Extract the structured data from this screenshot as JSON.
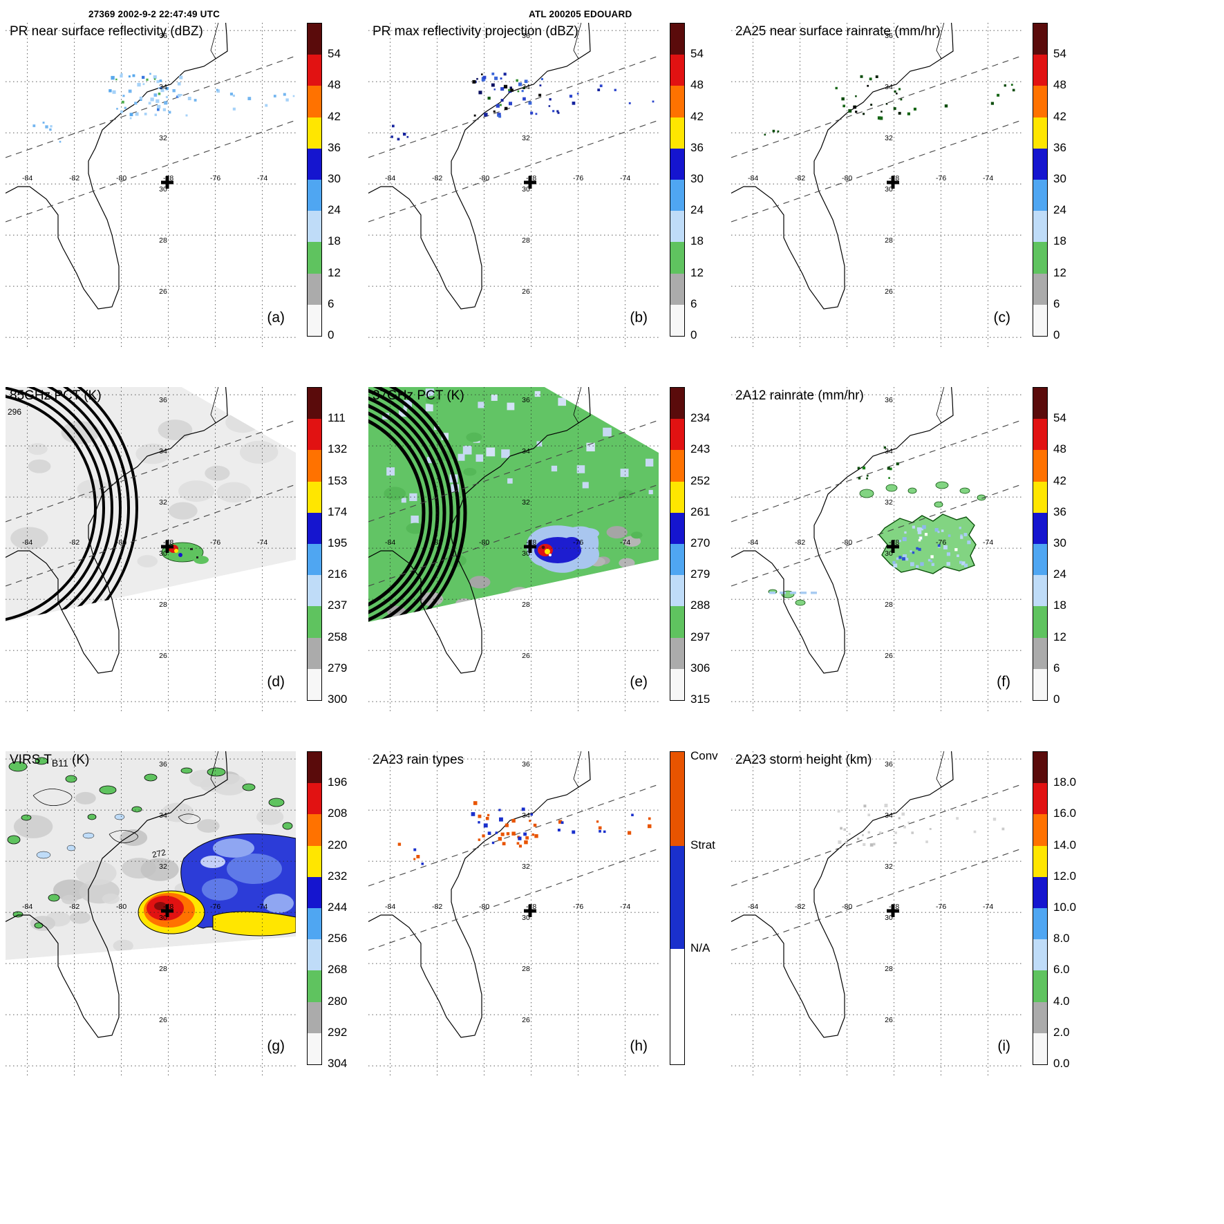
{
  "header": {
    "orbit_info": "27369 2002-9-2 22:47:49 UTC",
    "storm_id": "ATL 200205 EDOUARD"
  },
  "map_labels": {
    "lon": [
      "-84",
      "-82",
      "-80",
      "-78",
      "-76",
      "-74"
    ],
    "lat": [
      "36",
      "34",
      "32",
      "30",
      "28",
      "26"
    ],
    "storm_center_marker": "+"
  },
  "palette": [
    "#5a0b0b",
    "#e11212",
    "#ff7200",
    "#ffe600",
    "#1515cf",
    "#4fa6f2",
    "#bfdcf8",
    "#5fc35f",
    "#ababab",
    "#f7f7f7"
  ],
  "panels": [
    {
      "letter": "(a)",
      "title": "PR near surface reflectivity (dBZ)",
      "cbar_ticks": [
        "54",
        "48",
        "42",
        "36",
        "30",
        "24",
        "18",
        "12",
        "6",
        "0"
      ]
    },
    {
      "letter": "(b)",
      "title": "PR max reflectivity projection (dBZ)",
      "cbar_ticks": [
        "54",
        "48",
        "42",
        "36",
        "30",
        "24",
        "18",
        "12",
        "6",
        "0"
      ]
    },
    {
      "letter": "(c)",
      "title": "2A25 near surface rainrate (mm/hr)",
      "cbar_ticks": [
        "54",
        "48",
        "42",
        "36",
        "30",
        "24",
        "18",
        "12",
        "6",
        "0"
      ]
    },
    {
      "letter": "(d)",
      "title": "85GHz PCT (K)",
      "contour_label": "296",
      "cbar_ticks": [
        "111",
        "132",
        "153",
        "174",
        "195",
        "216",
        "237",
        "258",
        "279",
        "300"
      ]
    },
    {
      "letter": "(e)",
      "title": "37GHz PCT (K)",
      "cbar_ticks": [
        "234",
        "243",
        "252",
        "261",
        "270",
        "279",
        "288",
        "297",
        "306",
        "315"
      ]
    },
    {
      "letter": "(f)",
      "title": "2A12 rainrate (mm/hr)",
      "cbar_ticks": [
        "54",
        "48",
        "42",
        "36",
        "30",
        "24",
        "18",
        "12",
        "6",
        "0"
      ]
    },
    {
      "letter": "(g)",
      "title": "VIRS TB11 (K)",
      "title_parts": {
        "pre": "VIRS T",
        "sub": "B11",
        "post": " (K)"
      },
      "contour_label": "272",
      "cbar_ticks": [
        "196",
        "208",
        "220",
        "232",
        "244",
        "256",
        "268",
        "280",
        "292",
        "304"
      ]
    },
    {
      "letter": "(h)",
      "title": "2A23 rain types",
      "cbar_custom": {
        "segments": [
          {
            "color": "#e85400",
            "h": 0.3
          },
          {
            "color": "#1a30cc",
            "h": 0.33
          },
          {
            "color": "#ffffff",
            "h": 0.37
          }
        ],
        "ticks": [
          {
            "label": "Conv",
            "pos": 0.015
          },
          {
            "label": "Strat",
            "pos": 0.3
          },
          {
            "label": "N/A",
            "pos": 0.63
          }
        ]
      }
    },
    {
      "letter": "(i)",
      "title": "2A23 storm height (km)",
      "cbar_ticks": [
        "18.0",
        "16.0",
        "14.0",
        "12.0",
        "10.0",
        "8.0",
        "6.0",
        "4.0",
        "2.0",
        "0.0"
      ]
    }
  ],
  "chart_data": {
    "type": "heatmap",
    "layout": "3x3 satellite map panels",
    "geo": {
      "lon_ticks": [
        -84,
        -82,
        -80,
        -78,
        -76,
        -74
      ],
      "lat_ticks": [
        36,
        34,
        32,
        30,
        28,
        26
      ],
      "grid": "dotted graticule every 2 degrees",
      "storm_center": {
        "lon": -78,
        "lat": 30
      },
      "swath_edges": "two dashed diagonal lines rising to the northeast"
    },
    "panels": [
      {
        "id": "a",
        "title": "PR near surface reflectivity (dBZ)",
        "units": "dBZ",
        "scale": [
          0,
          54
        ],
        "scale_ticks": [
          54,
          48,
          42,
          36,
          30,
          24,
          18,
          12,
          6,
          0
        ]
      },
      {
        "id": "b",
        "title": "PR max reflectivity projection (dBZ)",
        "units": "dBZ",
        "scale": [
          0,
          54
        ],
        "scale_ticks": [
          54,
          48,
          42,
          36,
          30,
          24,
          18,
          12,
          6,
          0
        ]
      },
      {
        "id": "c",
        "title": "2A25 near surface rainrate (mm/hr)",
        "units": "mm/hr",
        "scale": [
          0,
          54
        ],
        "scale_ticks": [
          54,
          48,
          42,
          36,
          30,
          24,
          18,
          12,
          6,
          0
        ]
      },
      {
        "id": "d",
        "title": "85GHz PCT (K)",
        "units": "K",
        "scale": [
          111,
          300
        ],
        "scale_ticks": [
          111,
          132,
          153,
          174,
          195,
          216,
          237,
          258,
          279,
          300
        ],
        "contour_labels": [
          296
        ]
      },
      {
        "id": "e",
        "title": "37GHz PCT (K)",
        "units": "K",
        "scale": [
          234,
          315
        ],
        "scale_ticks": [
          234,
          243,
          252,
          261,
          270,
          279,
          288,
          297,
          306,
          315
        ]
      },
      {
        "id": "f",
        "title": "2A12 rainrate (mm/hr)",
        "units": "mm/hr",
        "scale": [
          0,
          54
        ],
        "scale_ticks": [
          54,
          48,
          42,
          36,
          30,
          24,
          18,
          12,
          6,
          0
        ]
      },
      {
        "id": "g",
        "title": "VIRS TB11 (K)",
        "units": "K",
        "scale": [
          196,
          304
        ],
        "scale_ticks": [
          196,
          208,
          220,
          232,
          244,
          256,
          268,
          280,
          292,
          304
        ],
        "contour_labels": [
          272
        ]
      },
      {
        "id": "h",
        "title": "2A23 rain types",
        "classes": [
          "Conv",
          "Strat",
          "N/A"
        ]
      },
      {
        "id": "i",
        "title": "2A23 storm height (km)",
        "units": "km",
        "scale": [
          0,
          18
        ],
        "scale_ticks": [
          18,
          16,
          14,
          12,
          10,
          8,
          6,
          4,
          2,
          0
        ]
      }
    ]
  }
}
